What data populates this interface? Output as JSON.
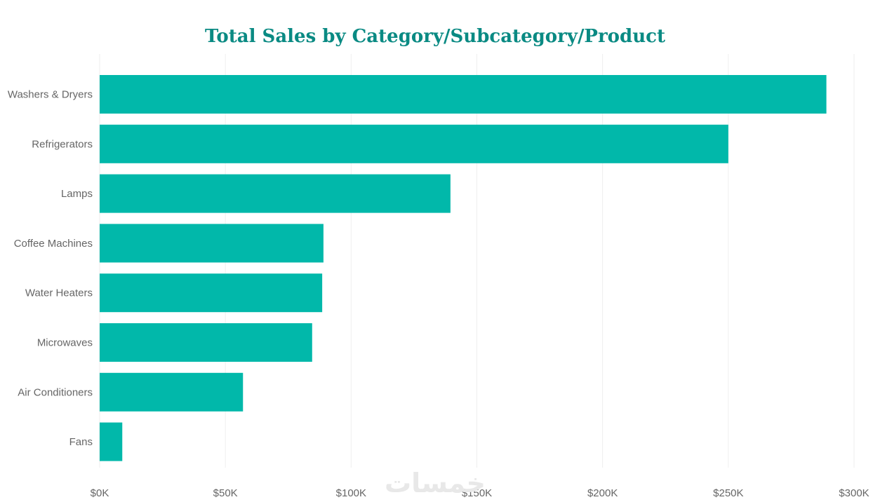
{
  "chart_data": {
    "type": "bar",
    "orientation": "horizontal",
    "title": "Total Sales by Category/Subcategory/Product",
    "xlabel": "",
    "ylabel": "",
    "categories": [
      "Washers & Dryers",
      "Refrigerators",
      "Lamps",
      "Coffee Machines",
      "Water Heaters",
      "Microwaves",
      "Air Conditioners",
      "Fans"
    ],
    "values": [
      289000,
      250000,
      139500,
      89000,
      88500,
      84500,
      57000,
      9000
    ],
    "xlim": [
      0,
      300000
    ],
    "x_ticks": [
      "$0K",
      "$50K",
      "$100K",
      "$150K",
      "$200K",
      "$250K",
      "$300K"
    ],
    "x_tick_values": [
      0,
      50000,
      100000,
      150000,
      200000,
      250000,
      300000
    ],
    "grid": true,
    "colors": {
      "bar": "#01b8aa",
      "title": "#0a8a83",
      "grid": "#eeeeee",
      "label": "#666666"
    }
  },
  "watermark": {
    "text": "خمسات"
  }
}
